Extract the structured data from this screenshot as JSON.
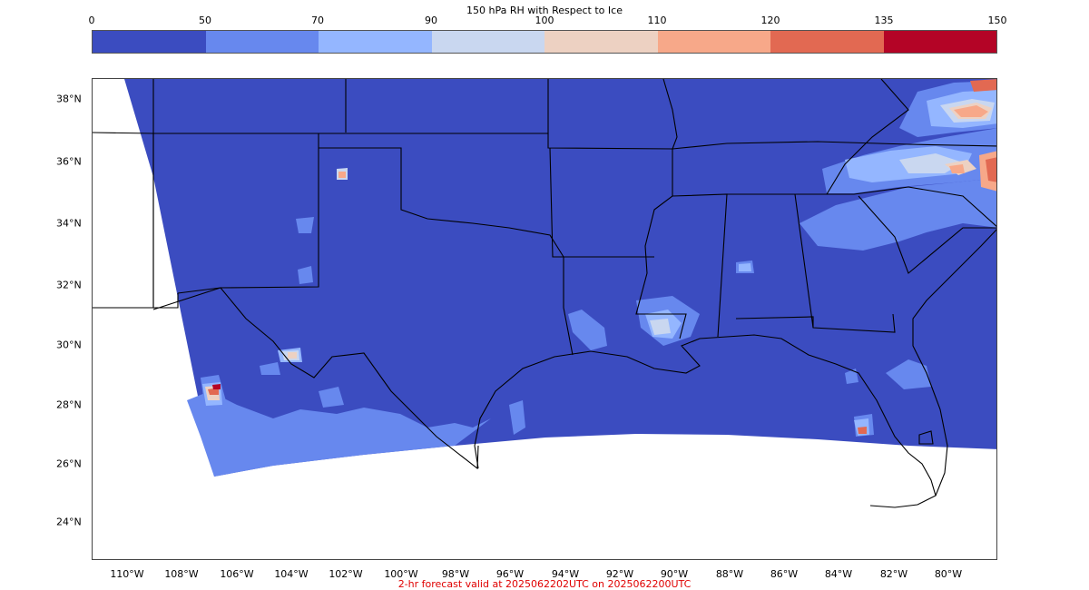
{
  "title": "150 hPa RH with Respect to Ice",
  "colorbar": {
    "ticks": [
      "0",
      "50",
      "70",
      "90",
      "100",
      "110",
      "120",
      "135",
      "150"
    ],
    "colors": [
      "#3b4cc0",
      "#6788ee",
      "#94b6ff",
      "#c9d7f0",
      "#edd1c2",
      "#f7a889",
      "#e26952",
      "#b40426"
    ]
  },
  "lat_labels": [
    "38°N",
    "36°N",
    "34°N",
    "32°N",
    "30°N",
    "28°N",
    "26°N",
    "24°N"
  ],
  "lon_labels": [
    "110°W",
    "108°W",
    "106°W",
    "104°W",
    "102°W",
    "100°W",
    "98°W",
    "96°W",
    "94°W",
    "92°W",
    "90°W",
    "88°W",
    "86°W",
    "84°W",
    "82°W",
    "80°W"
  ],
  "footer": "2-hr forecast valid at 2025062202UTC on 2025062200UTC"
}
